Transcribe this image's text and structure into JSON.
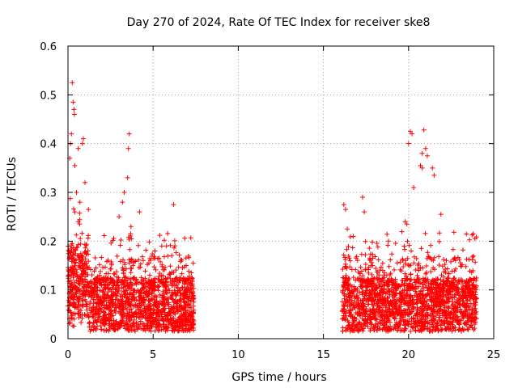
{
  "chart_data": {
    "type": "scatter",
    "title": "Day 270 of 2024, Rate Of TEC Index for receiver ske8",
    "xlabel": "GPS time / hours",
    "ylabel": "ROTI / TECUs",
    "xlim": [
      0,
      25
    ],
    "ylim": [
      0,
      0.6
    ],
    "x_ticks": [
      "0",
      "5",
      "10",
      "15",
      "20",
      "25"
    ],
    "y_ticks": [
      "0",
      "0.1",
      "0.2",
      "0.3",
      "0.4",
      "0.5",
      "0.6"
    ],
    "grid": true,
    "marker": "+",
    "color": "#ff0000",
    "series": [
      {
        "name": "ROTI",
        "note": "dense cloud of points; two observation windows approx. 0.0–7.4 h and 16.1–24.0 h, bulk 0.02–0.15 TECU, peaks listed as individual points",
        "windows": [
          [
            0.0,
            7.4
          ],
          [
            16.1,
            24.0
          ]
        ],
        "points": [
          [
            0.25,
            0.525
          ],
          [
            0.3,
            0.485
          ],
          [
            0.35,
            0.47
          ],
          [
            0.38,
            0.46
          ],
          [
            0.2,
            0.42
          ],
          [
            0.15,
            0.4
          ],
          [
            0.9,
            0.41
          ],
          [
            0.85,
            0.4
          ],
          [
            0.6,
            0.39
          ],
          [
            0.1,
            0.37
          ],
          [
            0.4,
            0.355
          ],
          [
            1.0,
            0.32
          ],
          [
            0.5,
            0.3
          ],
          [
            0.7,
            0.28
          ],
          [
            1.2,
            0.265
          ],
          [
            3.6,
            0.42
          ],
          [
            3.55,
            0.39
          ],
          [
            3.5,
            0.33
          ],
          [
            3.3,
            0.3
          ],
          [
            3.2,
            0.28
          ],
          [
            4.2,
            0.26
          ],
          [
            3.7,
            0.23
          ],
          [
            6.2,
            0.275
          ],
          [
            3.0,
            0.25
          ],
          [
            20.1,
            0.425
          ],
          [
            20.2,
            0.42
          ],
          [
            20.9,
            0.428
          ],
          [
            20.0,
            0.4
          ],
          [
            21.0,
            0.39
          ],
          [
            20.8,
            0.38
          ],
          [
            21.1,
            0.375
          ],
          [
            20.7,
            0.355
          ],
          [
            20.8,
            0.35
          ],
          [
            21.4,
            0.35
          ],
          [
            21.5,
            0.335
          ],
          [
            17.3,
            0.29
          ],
          [
            16.2,
            0.275
          ],
          [
            16.3,
            0.265
          ],
          [
            17.4,
            0.26
          ],
          [
            20.3,
            0.31
          ],
          [
            21.9,
            0.255
          ],
          [
            23.8,
            0.215
          ],
          [
            23.9,
            0.205
          ],
          [
            19.8,
            0.24
          ],
          [
            16.4,
            0.225
          ],
          [
            19.9,
            0.235
          ]
        ]
      }
    ]
  }
}
